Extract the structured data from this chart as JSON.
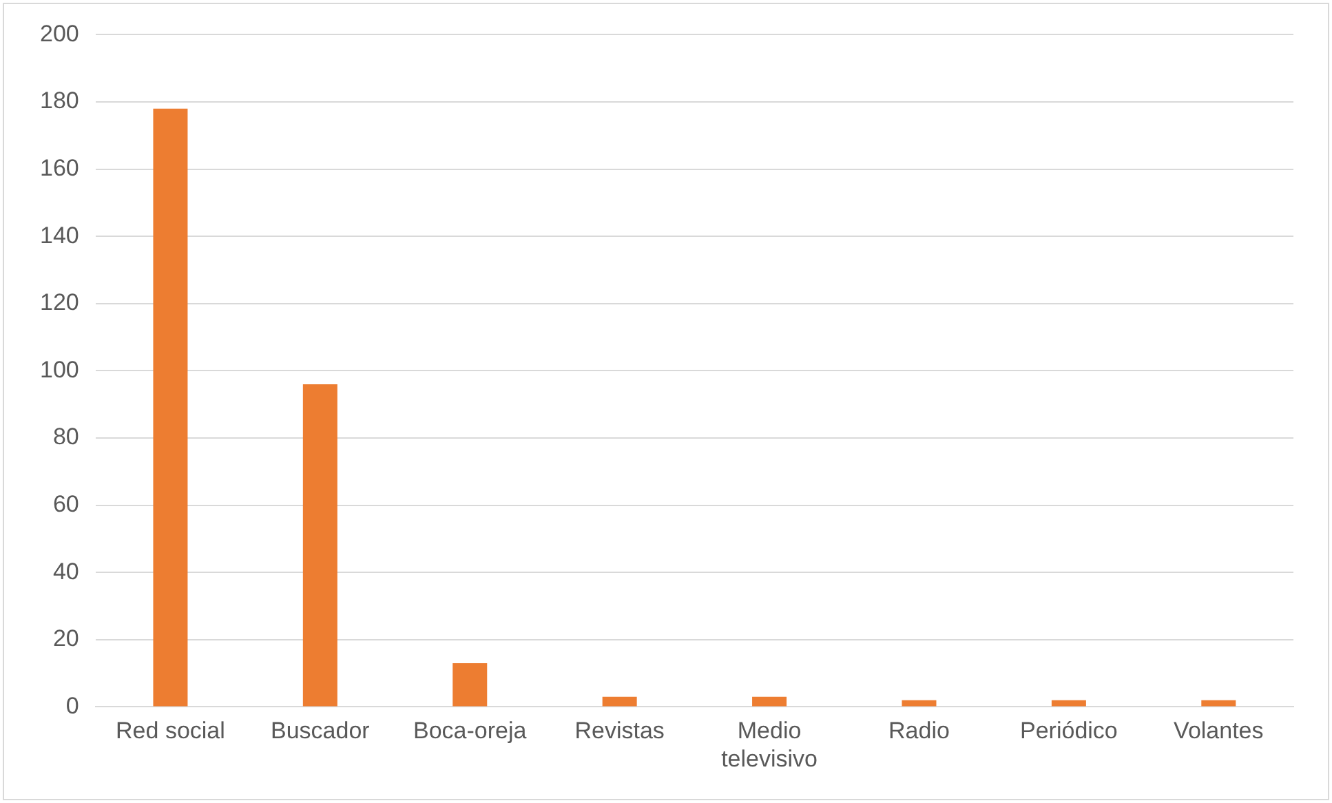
{
  "chart_data": {
    "type": "bar",
    "categories": [
      "Red social",
      "Buscador",
      "Boca-oreja",
      "Revistas",
      "Medio televisivo",
      "Radio",
      "Periódico",
      "Volantes"
    ],
    "values": [
      178,
      96,
      13,
      3,
      3,
      2,
      2,
      2
    ],
    "color": "#ed7d31",
    "ylim": [
      0,
      200
    ],
    "yticks": [
      0,
      20,
      40,
      60,
      80,
      100,
      120,
      140,
      160,
      180,
      200
    ],
    "grid": "y",
    "legend": false
  }
}
